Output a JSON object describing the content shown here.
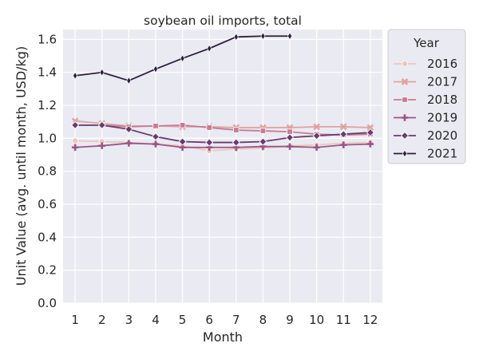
{
  "chart_data": {
    "type": "line",
    "title": "soybean oil imports, total",
    "xlabel": "Month",
    "ylabel": "Unit Value (avg. until month, USD/kg)",
    "x": [
      1,
      2,
      3,
      4,
      5,
      6,
      7,
      8,
      9,
      10,
      11,
      12
    ],
    "ylim": [
      0.0,
      1.66
    ],
    "yticks": [
      "0.0",
      "0.2",
      "0.4",
      "0.6",
      "0.8",
      "1.0",
      "1.2",
      "1.4",
      "1.6"
    ],
    "grid": true,
    "legend": {
      "title": "Year",
      "placement": "outside-right"
    },
    "series": [
      {
        "name": "2016",
        "color": "#ecc7bd",
        "marker": "circle",
        "values": [
          0.985,
          0.98,
          0.975,
          0.965,
          0.955,
          0.925,
          0.935,
          0.94,
          0.955,
          0.96,
          0.97,
          0.975
        ]
      },
      {
        "name": "2017",
        "color": "#e0a3a3",
        "marker": "x",
        "values": [
          1.105,
          1.09,
          1.075,
          1.075,
          1.07,
          1.07,
          1.065,
          1.065,
          1.065,
          1.07,
          1.07,
          1.065
        ]
      },
      {
        "name": "2018",
        "color": "#c77b94",
        "marker": "square",
        "values": [
          1.08,
          1.08,
          1.07,
          1.075,
          1.08,
          1.065,
          1.05,
          1.045,
          1.04,
          1.025,
          1.02,
          1.025
        ]
      },
      {
        "name": "2019",
        "color": "#995688",
        "marker": "plus",
        "values": [
          0.945,
          0.955,
          0.97,
          0.965,
          0.945,
          0.945,
          0.945,
          0.95,
          0.95,
          0.945,
          0.96,
          0.965
        ]
      },
      {
        "name": "2020",
        "color": "#673c6f",
        "marker": "diamond",
        "values": [
          1.08,
          1.08,
          1.055,
          1.01,
          0.98,
          0.975,
          0.975,
          0.98,
          1.005,
          1.015,
          1.025,
          1.035
        ]
      },
      {
        "name": "2021",
        "color": "#2d1e3e",
        "marker": "thin_diamond",
        "values": [
          1.38,
          1.4,
          1.35,
          1.42,
          1.485,
          1.545,
          1.615,
          1.62,
          1.62,
          null,
          null,
          null
        ]
      }
    ]
  }
}
